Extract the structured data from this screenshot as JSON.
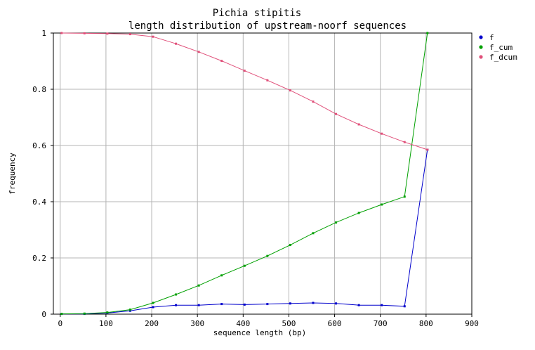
{
  "chart_data": {
    "type": "line",
    "title": "Pichia stipitis",
    "subtitle": "length distribution of upstream-noorf sequences",
    "xlabel": "sequence length (bp)",
    "ylabel": "frequency",
    "xlim": [
      -15,
      900
    ],
    "ylim": [
      0,
      1
    ],
    "xticks": [
      0,
      100,
      200,
      300,
      400,
      500,
      600,
      700,
      800,
      900
    ],
    "yticks": [
      0,
      0.2,
      0.4,
      0.6,
      0.8,
      1
    ],
    "ytick_labels": [
      "0",
      "0.2",
      "0.4",
      "0.6",
      "0.8",
      "1"
    ],
    "grid": true,
    "legend_position": "top-right",
    "x": [
      3,
      53,
      103,
      153,
      203,
      253,
      303,
      353,
      403,
      453,
      503,
      553,
      603,
      653,
      703,
      753,
      803
    ],
    "series": [
      {
        "name": "f",
        "color": "#0000cc",
        "values": [
          0.001,
          0.001,
          0.004,
          0.012,
          0.025,
          0.032,
          0.032,
          0.036,
          0.034,
          0.036,
          0.038,
          0.04,
          0.038,
          0.032,
          0.032,
          0.028,
          0.585
        ]
      },
      {
        "name": "f_cum",
        "color": "#00a000",
        "values": [
          0.001,
          0.002,
          0.006,
          0.016,
          0.04,
          0.07,
          0.102,
          0.138,
          0.172,
          0.207,
          0.246,
          0.288,
          0.326,
          0.36,
          0.39,
          0.418,
          1.0
        ]
      },
      {
        "name": "f_dcum",
        "color": "#e0507a",
        "values": [
          1.0,
          0.999,
          0.998,
          0.996,
          0.987,
          0.962,
          0.933,
          0.901,
          0.866,
          0.832,
          0.796,
          0.756,
          0.712,
          0.675,
          0.642,
          0.612,
          0.585
        ]
      }
    ]
  }
}
